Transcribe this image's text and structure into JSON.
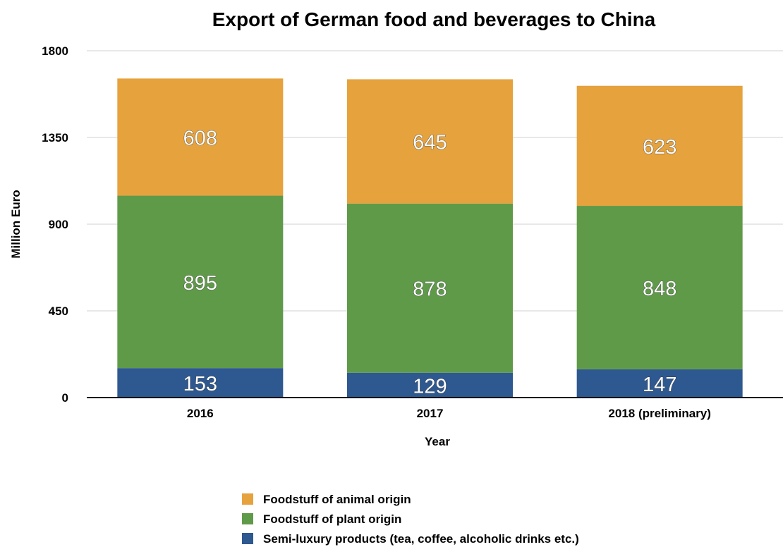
{
  "chart_data": {
    "type": "bar",
    "stacked": true,
    "title": "Export of German food and beverages to China",
    "xlabel": "Year",
    "ylabel": "Million Euro",
    "categories": [
      "2016",
      "2017",
      "2018 (preliminary)"
    ],
    "ylim": [
      0,
      1800
    ],
    "yticks": [
      0,
      450,
      900,
      1350,
      1800
    ],
    "grid": true,
    "legend_position": "bottom",
    "series": [
      {
        "name": "Semi-luxury products (tea, coffee, alcoholic drinks etc.)",
        "values": [
          153,
          129,
          147
        ],
        "color": "#2e5890"
      },
      {
        "name": "Foodstuff of plant origin",
        "values": [
          895,
          878,
          848
        ],
        "color": "#5f9a49"
      },
      {
        "name": "Foodstuff of animal origin",
        "values": [
          608,
          645,
          623
        ],
        "color": "#e6a23d"
      }
    ]
  }
}
